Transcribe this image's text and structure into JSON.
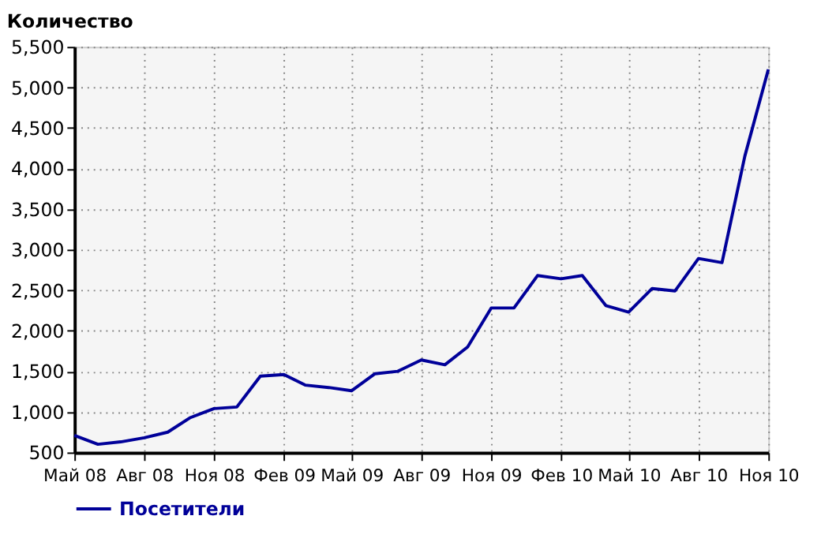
{
  "chart_data": {
    "type": "line",
    "ylabel": "Количество",
    "x": [
      "2008-05",
      "2008-06",
      "2008-07",
      "2008-08",
      "2008-09",
      "2008-10",
      "2008-11",
      "2008-12",
      "2009-01",
      "2009-02",
      "2009-03",
      "2009-04",
      "2009-05",
      "2009-06",
      "2009-07",
      "2009-08",
      "2009-09",
      "2009-10",
      "2009-11",
      "2009-12",
      "2010-01",
      "2010-02",
      "2010-03",
      "2010-04",
      "2010-05",
      "2010-06",
      "2010-07",
      "2010-08",
      "2010-09",
      "2010-10",
      "2010-11"
    ],
    "series": [
      {
        "name": "Посетители",
        "color": "#000099",
        "values": [
          710,
          600,
          630,
          680,
          750,
          930,
          1040,
          1060,
          1440,
          1460,
          1330,
          1300,
          1260,
          1470,
          1500,
          1640,
          1580,
          1800,
          2280,
          2280,
          2680,
          2640,
          2680,
          2310,
          2230,
          2520,
          2490,
          2890,
          2840,
          4150,
          5220
        ]
      }
    ],
    "xlim": [
      "2008-05",
      "2010-11"
    ],
    "xticks": [
      {
        "value": "2008-05",
        "label": "Май 08"
      },
      {
        "value": "2008-08",
        "label": "Авг 08"
      },
      {
        "value": "2008-11",
        "label": "Ноя 08"
      },
      {
        "value": "2009-02",
        "label": "Фев 09"
      },
      {
        "value": "2009-05",
        "label": "Май 09"
      },
      {
        "value": "2009-08",
        "label": "Авг 09"
      },
      {
        "value": "2009-11",
        "label": "Ноя 09"
      },
      {
        "value": "2010-02",
        "label": "Фев 10"
      },
      {
        "value": "2010-05",
        "label": "Май 10"
      },
      {
        "value": "2010-08",
        "label": "Авг 10"
      },
      {
        "value": "2010-11",
        "label": "Ноя 10"
      }
    ],
    "ylim": [
      500,
      5500
    ],
    "yticks": [
      {
        "value": 500,
        "label": "500"
      },
      {
        "value": 1000,
        "label": "1,000"
      },
      {
        "value": 1500,
        "label": "1,500"
      },
      {
        "value": 2000,
        "label": "2,000"
      },
      {
        "value": 2500,
        "label": "2,500"
      },
      {
        "value": 3000,
        "label": "3,000"
      },
      {
        "value": 3500,
        "label": "3,500"
      },
      {
        "value": 4000,
        "label": "4,000"
      },
      {
        "value": 4500,
        "label": "4,500"
      },
      {
        "value": 5000,
        "label": "5,000"
      },
      {
        "value": 5500,
        "label": "5,500"
      }
    ],
    "grid": true,
    "legend": "bottom left",
    "marker": "none",
    "line_style": "solid"
  }
}
